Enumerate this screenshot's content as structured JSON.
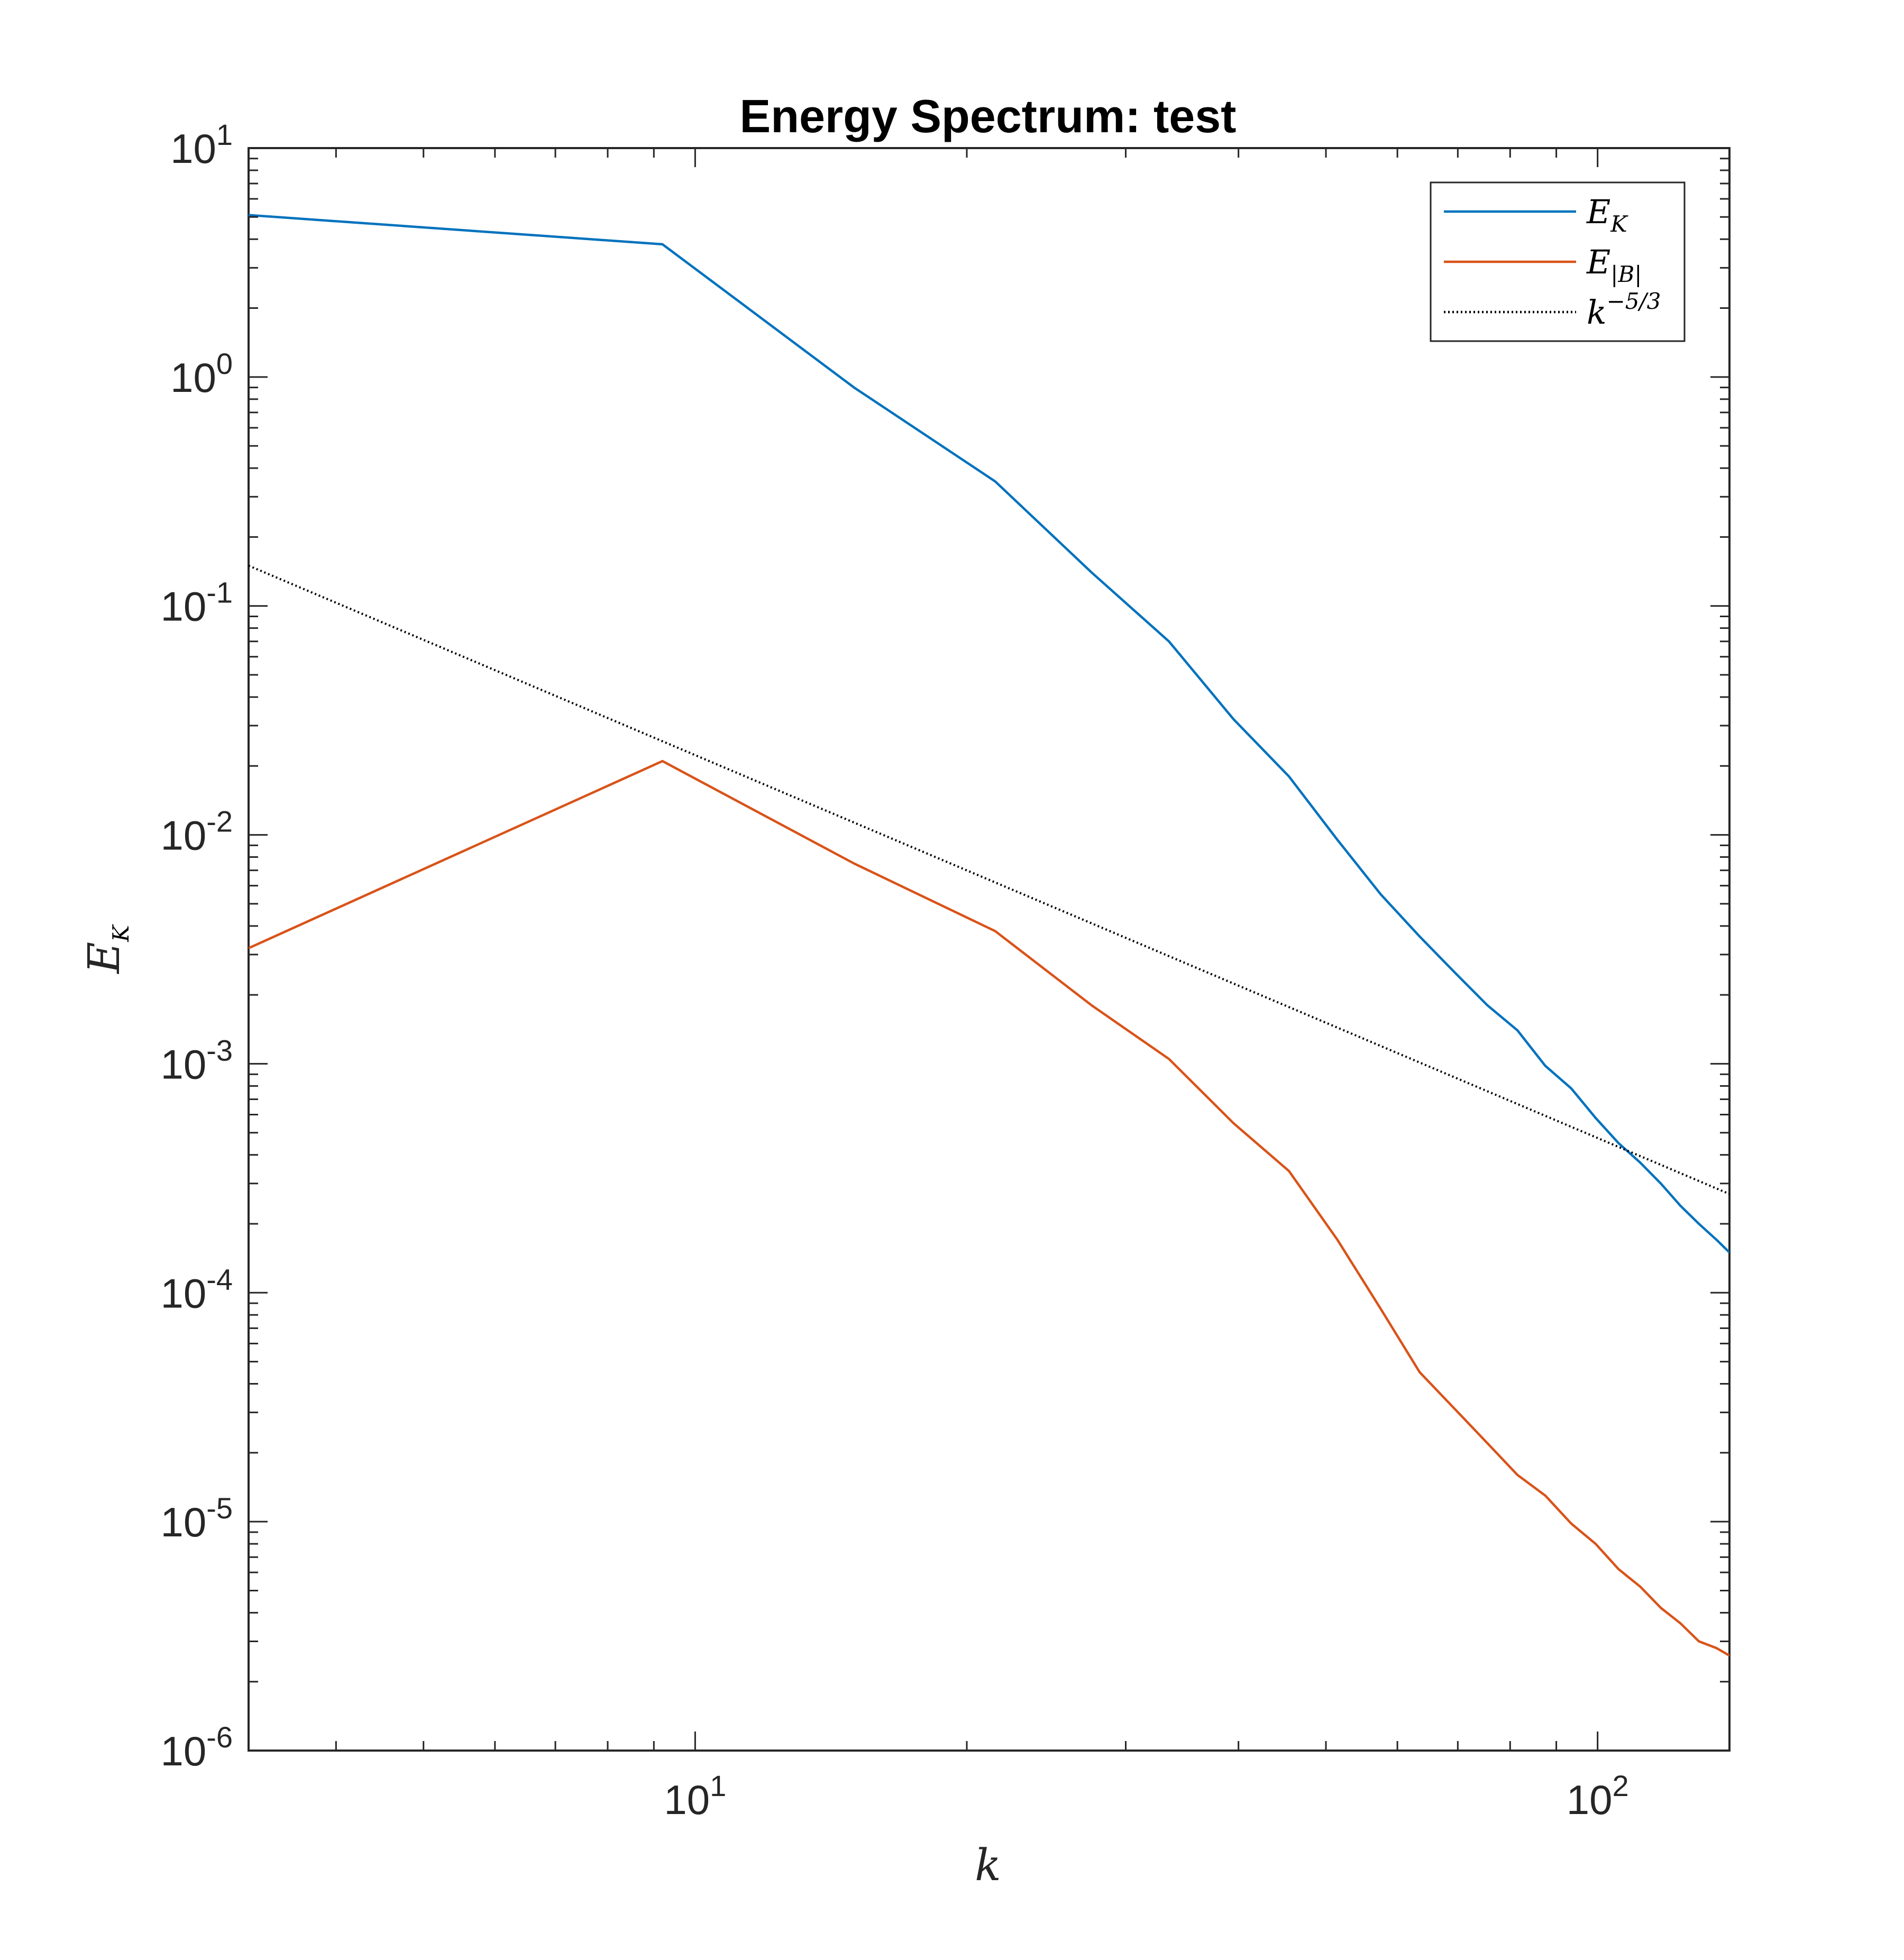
{
  "chart_data": {
    "type": "line",
    "title": "Energy Spectrum: test",
    "xlabel": "k",
    "ylabel": "E_K",
    "xscale": "log",
    "yscale": "log",
    "xlim": [
      3.2,
      140
    ],
    "ylim": [
      1e-06,
      10
    ],
    "grid": false,
    "legend_position": "top-right",
    "x_ticks": [
      {
        "value": 10,
        "base": "10",
        "exp": "1"
      },
      {
        "value": 100,
        "base": "10",
        "exp": "2"
      }
    ],
    "y_ticks": [
      {
        "value": 10,
        "base": "10",
        "exp": "1"
      },
      {
        "value": 1,
        "base": "10",
        "exp": "0"
      },
      {
        "value": 0.1,
        "base": "10",
        "exp": "-1"
      },
      {
        "value": 0.01,
        "base": "10",
        "exp": "-2"
      },
      {
        "value": 0.001,
        "base": "10",
        "exp": "-3"
      },
      {
        "value": 0.0001,
        "base": "10",
        "exp": "-4"
      },
      {
        "value": 1e-05,
        "base": "10",
        "exp": "-5"
      },
      {
        "value": 1e-06,
        "base": "10",
        "exp": "-6"
      }
    ],
    "series": [
      {
        "name": "E_K",
        "color": "#0072bd",
        "style": "solid",
        "x": [
          3.2,
          9.2,
          15,
          21.5,
          27.5,
          33.5,
          39.5,
          45.5,
          51.5,
          57.5,
          63.5,
          69.5,
          75.5,
          81.5,
          87.5,
          93.5,
          99.5,
          105.5,
          111.5,
          117.5,
          123.5,
          129.5,
          135.5,
          140
        ],
        "y": [
          5.1,
          3.8,
          0.9,
          0.35,
          0.14,
          0.07,
          0.032,
          0.018,
          0.0095,
          0.0055,
          0.0036,
          0.0025,
          0.0018,
          0.0014,
          0.00098,
          0.00078,
          0.00058,
          0.00045,
          0.00037,
          0.0003,
          0.00024,
          0.0002,
          0.00017,
          0.00015
        ]
      },
      {
        "name": "E_|B|",
        "color": "#d95319",
        "style": "solid",
        "x": [
          3.2,
          9.2,
          15,
          21.5,
          27.5,
          33.5,
          39.5,
          45.5,
          51.5,
          57.5,
          63.5,
          69.5,
          75.5,
          81.5,
          87.5,
          93.5,
          99.5,
          105.5,
          111.5,
          117.5,
          123.5,
          129.5,
          135.5,
          140
        ],
        "y": [
          0.0032,
          0.021,
          0.0075,
          0.0038,
          0.0018,
          0.00105,
          0.00055,
          0.00034,
          0.00017,
          8.5e-05,
          4.5e-05,
          3.1e-05,
          2.2e-05,
          1.6e-05,
          1.3e-05,
          9.8e-06,
          8e-06,
          6.2e-06,
          5.2e-06,
          4.2e-06,
          3.6e-06,
          3e-06,
          2.8e-06,
          2.6e-06
        ]
      },
      {
        "name": "k^-5/3",
        "color": "#000000",
        "style": "dotted",
        "x": [
          3.2,
          140
        ],
        "y": [
          0.15,
          0.00027
        ]
      }
    ],
    "legend": [
      {
        "base": "E",
        "sub": "K",
        "sup": "",
        "color": "#0072bd",
        "style": "solid"
      },
      {
        "base": "E",
        "sub": "|B|",
        "sup": "",
        "color": "#d95319",
        "style": "solid"
      },
      {
        "base": "k",
        "sub": "",
        "sup": "−5/3",
        "color": "#000000",
        "style": "dotted"
      }
    ],
    "ylabel_parts": {
      "base": "E",
      "sub": "K"
    }
  }
}
